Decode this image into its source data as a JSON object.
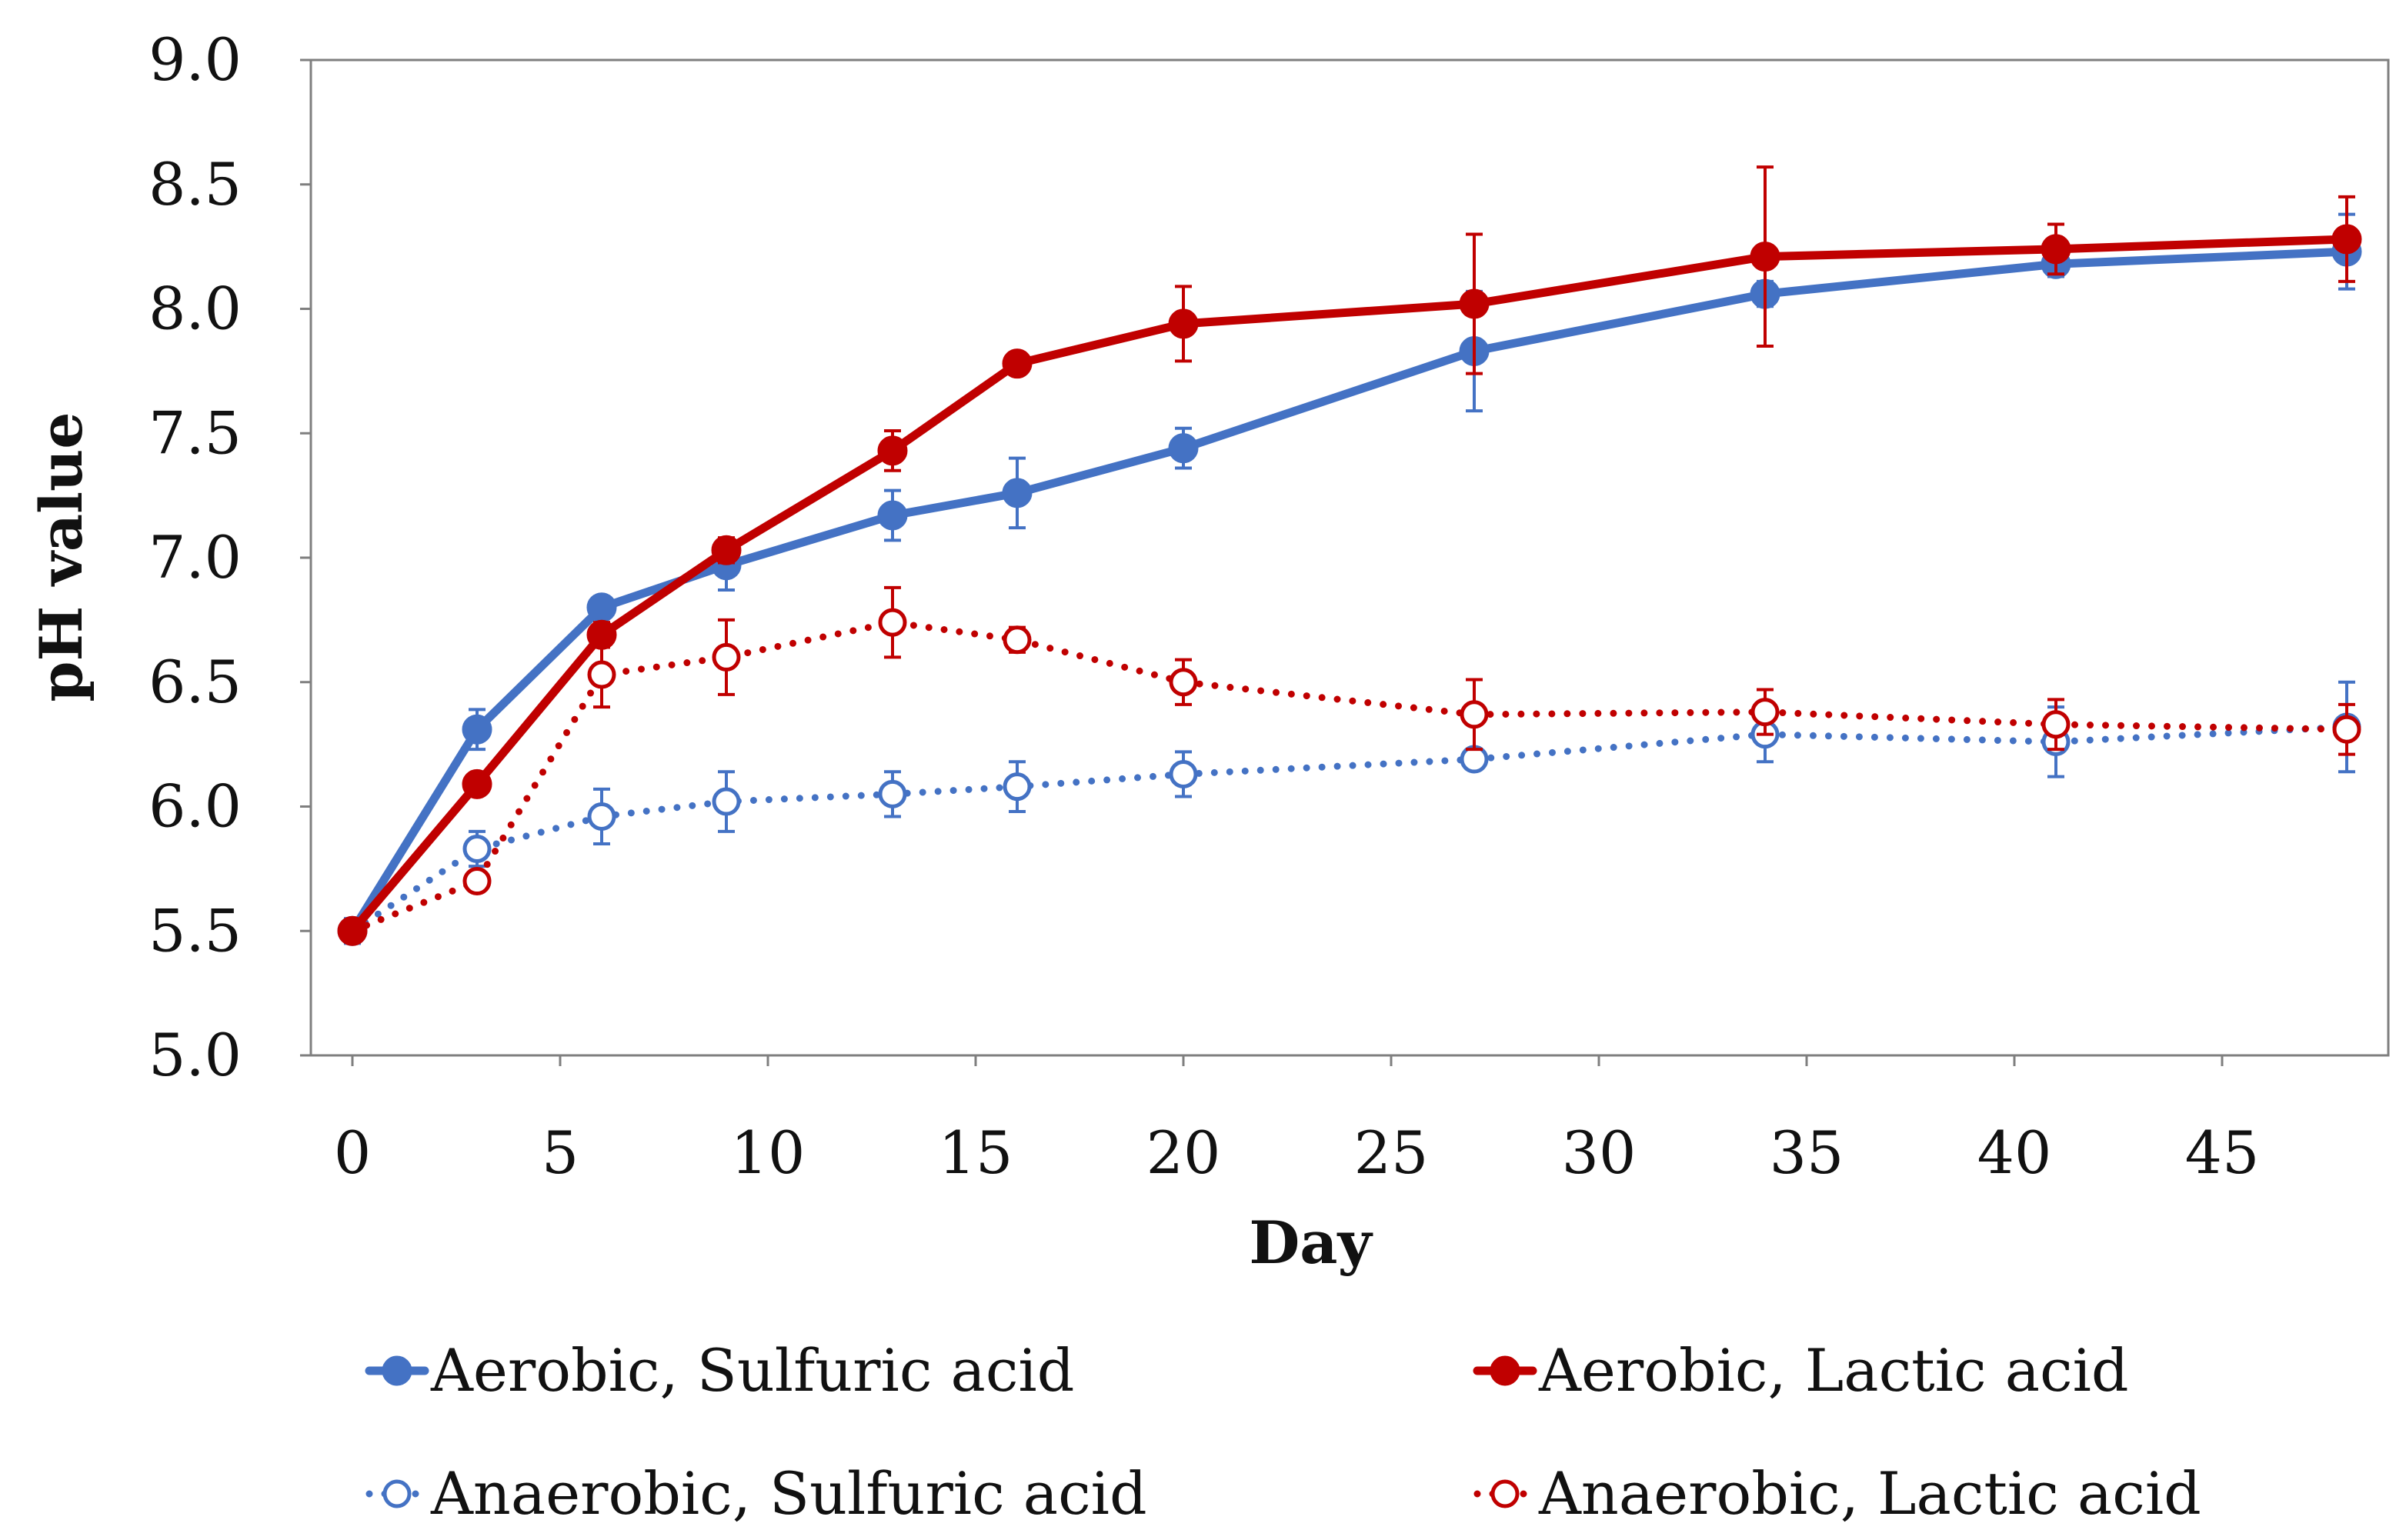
{
  "chart_data": {
    "type": "line",
    "title": "",
    "xlabel": "Day",
    "ylabel": "pH value",
    "xlim": [
      -1,
      49
    ],
    "ylim": [
      5.0,
      9.0
    ],
    "x_ticks": [
      0,
      5,
      10,
      15,
      20,
      25,
      30,
      35,
      40,
      45
    ],
    "x_tick_labels": [
      "0",
      "5",
      "10",
      "15",
      "20",
      "25",
      "30",
      "35",
      "40",
      "45"
    ],
    "y_ticks": [
      5.0,
      5.5,
      6.0,
      6.5,
      7.0,
      7.5,
      8.0,
      8.5,
      9.0
    ],
    "y_tick_labels": [
      "5.0",
      "5.5",
      "6.0",
      "6.5",
      "7.0",
      "7.5",
      "8.0",
      "8.5",
      "9.0"
    ],
    "grid": false,
    "legend_position": "bottom",
    "series": [
      {
        "name": "Aerobic, Sulfuric acid",
        "color": "#4472C4",
        "style": "solid",
        "marker": "filled-circle",
        "x": [
          0,
          3,
          6,
          9,
          13,
          16,
          20,
          27,
          34,
          41,
          48
        ],
        "y": [
          5.5,
          6.31,
          6.8,
          6.97,
          7.17,
          7.26,
          7.44,
          7.83,
          8.06,
          8.18,
          8.23
        ],
        "error": [
          0.05,
          0.08,
          0.02,
          0.1,
          0.1,
          0.14,
          0.08,
          0.24,
          0.05,
          0.05,
          0.15
        ]
      },
      {
        "name": "Aerobic, Lactic acid",
        "color": "#C00000",
        "style": "solid",
        "marker": "filled-circle",
        "x": [
          0,
          3,
          6,
          9,
          13,
          16,
          20,
          27,
          34,
          41,
          48
        ],
        "y": [
          5.5,
          6.09,
          6.69,
          7.03,
          7.43,
          7.78,
          7.94,
          8.02,
          8.21,
          8.24,
          8.28
        ],
        "error": [
          0.02,
          0.02,
          0.05,
          0.05,
          0.08,
          0.04,
          0.15,
          0.28,
          0.36,
          0.1,
          0.17
        ]
      },
      {
        "name": "Anaerobic, Sulfuric acid",
        "color": "#4472C4",
        "style": "dotted",
        "marker": "open-circle",
        "x": [
          0,
          3,
          6,
          9,
          13,
          16,
          20,
          27,
          34,
          41,
          48
        ],
        "y": [
          5.5,
          5.83,
          5.96,
          6.02,
          6.05,
          6.08,
          6.13,
          6.19,
          6.29,
          6.26,
          6.32
        ],
        "error": [
          0.03,
          0.07,
          0.11,
          0.12,
          0.09,
          0.1,
          0.09,
          0.03,
          0.11,
          0.14,
          0.18
        ]
      },
      {
        "name": "Anaerobic, Lactic acid",
        "color": "#C00000",
        "style": "dotted",
        "marker": "open-circle",
        "x": [
          0,
          3,
          6,
          9,
          13,
          16,
          20,
          27,
          34,
          41,
          48
        ],
        "y": [
          5.5,
          5.7,
          6.53,
          6.6,
          6.74,
          6.67,
          6.5,
          6.37,
          6.38,
          6.33,
          6.31
        ],
        "error": [
          0.02,
          0.03,
          0.13,
          0.15,
          0.14,
          0.05,
          0.09,
          0.14,
          0.09,
          0.1,
          0.1
        ]
      }
    ]
  }
}
